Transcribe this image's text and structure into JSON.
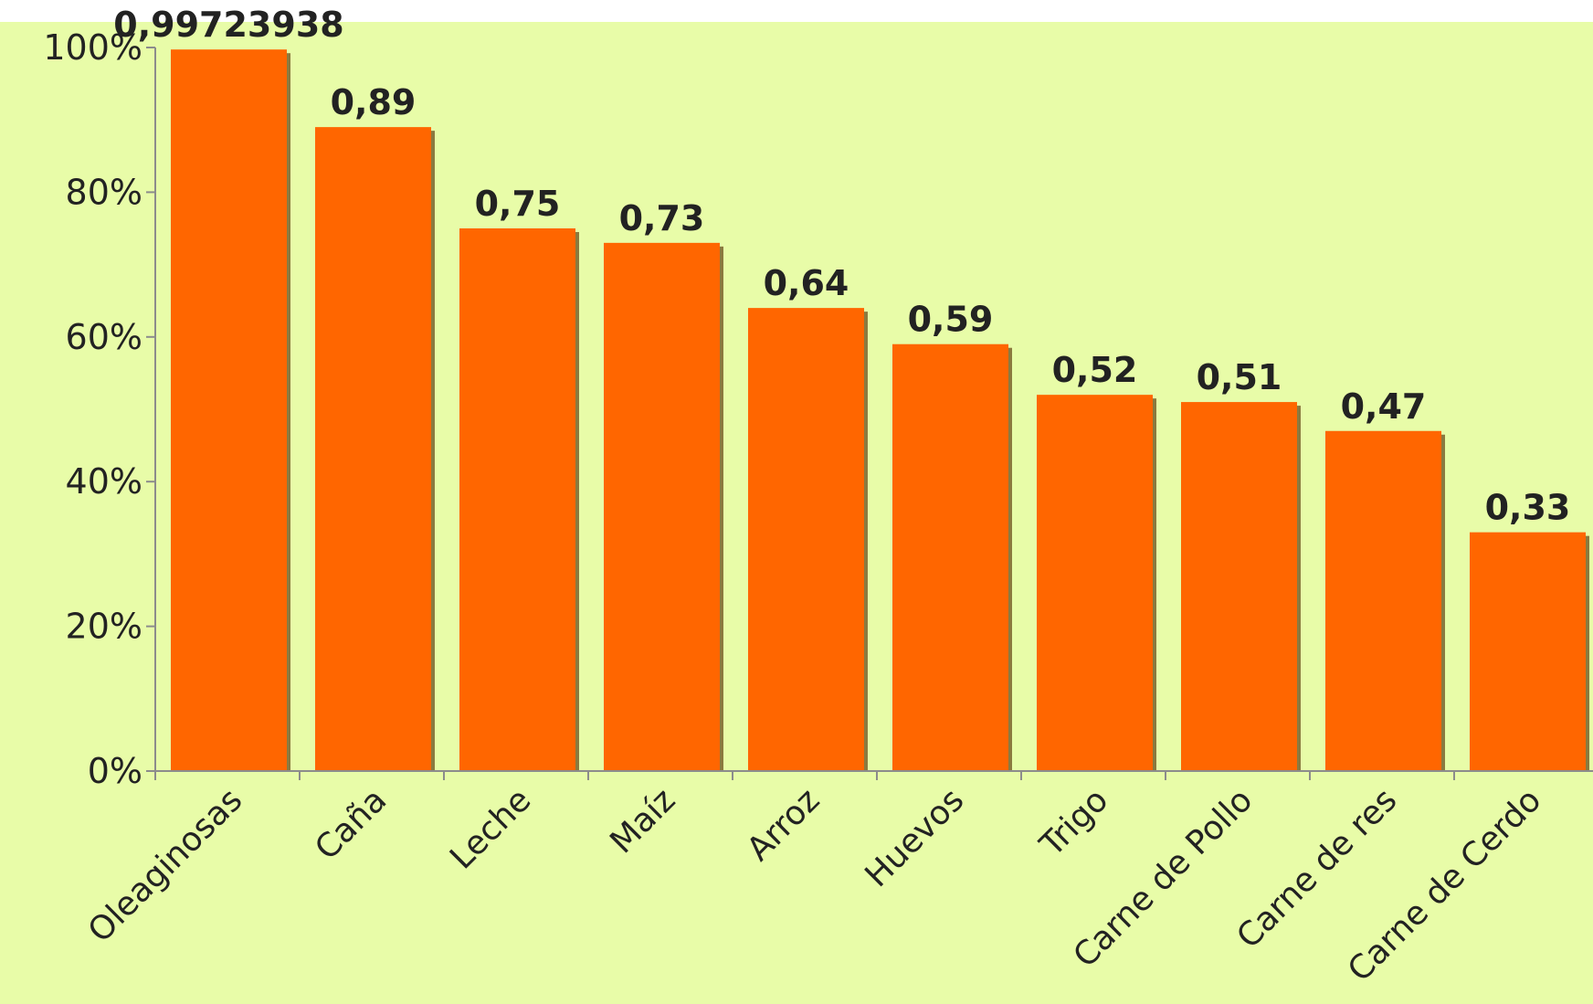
{
  "colors": {
    "plot_background": "#e8fca8",
    "bar_fill": "#ff6600",
    "bar_shadow": "#8a7a40",
    "axis": "#8c8c8c",
    "text": "#222222"
  },
  "chart_data": {
    "type": "bar",
    "title": "",
    "xlabel": "",
    "ylabel": "",
    "categories": [
      "Oleaginosas",
      "Caña",
      "Leche",
      "Maíz",
      "Arroz",
      "Huevos",
      "Trigo",
      "Carne de Pollo",
      "Carne de res",
      "Carne de Cerdo"
    ],
    "values": [
      0.99723938,
      0.89,
      0.75,
      0.73,
      0.64,
      0.59,
      0.52,
      0.51,
      0.47,
      0.33
    ],
    "data_labels": [
      "0,99723938",
      "0,89",
      "0,75",
      "0,73",
      "0,64",
      "0,59",
      "0,52",
      "0,51",
      "0,47",
      "0,33"
    ],
    "ylim": [
      0,
      1
    ],
    "y_ticks": [
      0,
      0.2,
      0.4,
      0.6,
      0.8,
      1.0
    ],
    "y_tick_labels": [
      "0%",
      "20%",
      "40%",
      "60%",
      "80%",
      "100%"
    ],
    "grid": false,
    "legend": "none"
  }
}
